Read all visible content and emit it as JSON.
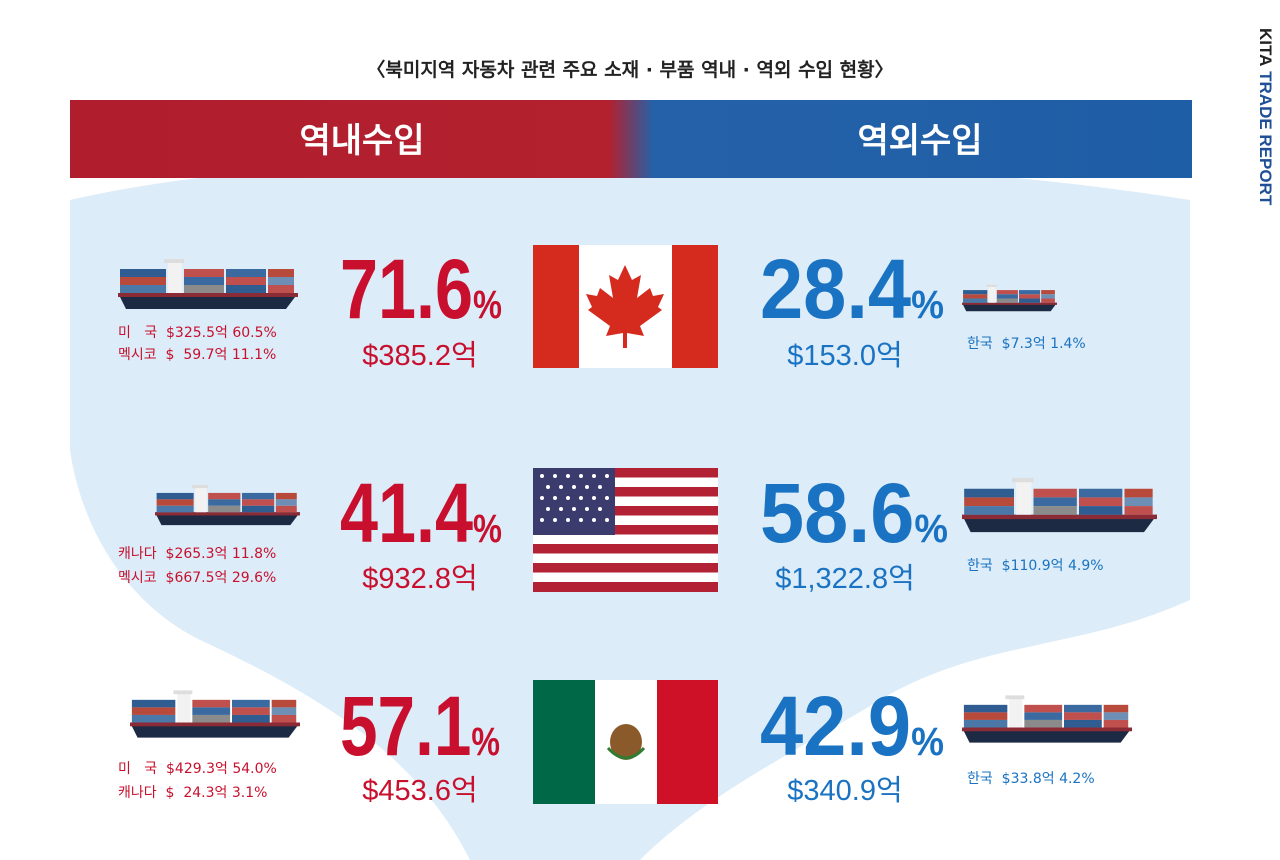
{
  "title": "〈북미지역 자동차 관련 주요 소재 · 부품 역내 · 역외 수입 현황〉",
  "side_label": {
    "brand": "KITA",
    "name": "TRADE REPORT"
  },
  "headers": {
    "inner": "역내수입",
    "outer": "역외수입"
  },
  "rows": [
    {
      "country": "캐나다",
      "inner": {
        "percent": "71.6",
        "unit": "%",
        "amount": "$385.2억",
        "details": [
          "미   국  $325.5억 60.5%",
          "멕시코  $  59.7억 11.1%"
        ]
      },
      "outer": {
        "percent": "28.4",
        "unit": "%",
        "amount": "$153.0억",
        "details": [
          "한국  $7.3억 1.4%"
        ]
      }
    },
    {
      "country": "미국",
      "inner": {
        "percent": "41.4",
        "unit": "%",
        "amount": "$932.8억",
        "details": [
          "캐나다  $265.3억 11.8%",
          "멕시코  $667.5억 29.6%"
        ]
      },
      "outer": {
        "percent": "58.6",
        "unit": "%",
        "amount": "$1,322.8억",
        "details": [
          "한국  $110.9억 4.9%"
        ]
      }
    },
    {
      "country": "멕시코",
      "inner": {
        "percent": "57.1",
        "unit": "%",
        "amount": "$453.6억",
        "details": [
          "미   국  $429.3억 54.0%",
          "캐나다  $  24.3억 3.1%"
        ]
      },
      "outer": {
        "percent": "42.9",
        "unit": "%",
        "amount": "$340.9억",
        "details": [
          "한국  $33.8억 4.2%"
        ]
      }
    }
  ]
}
